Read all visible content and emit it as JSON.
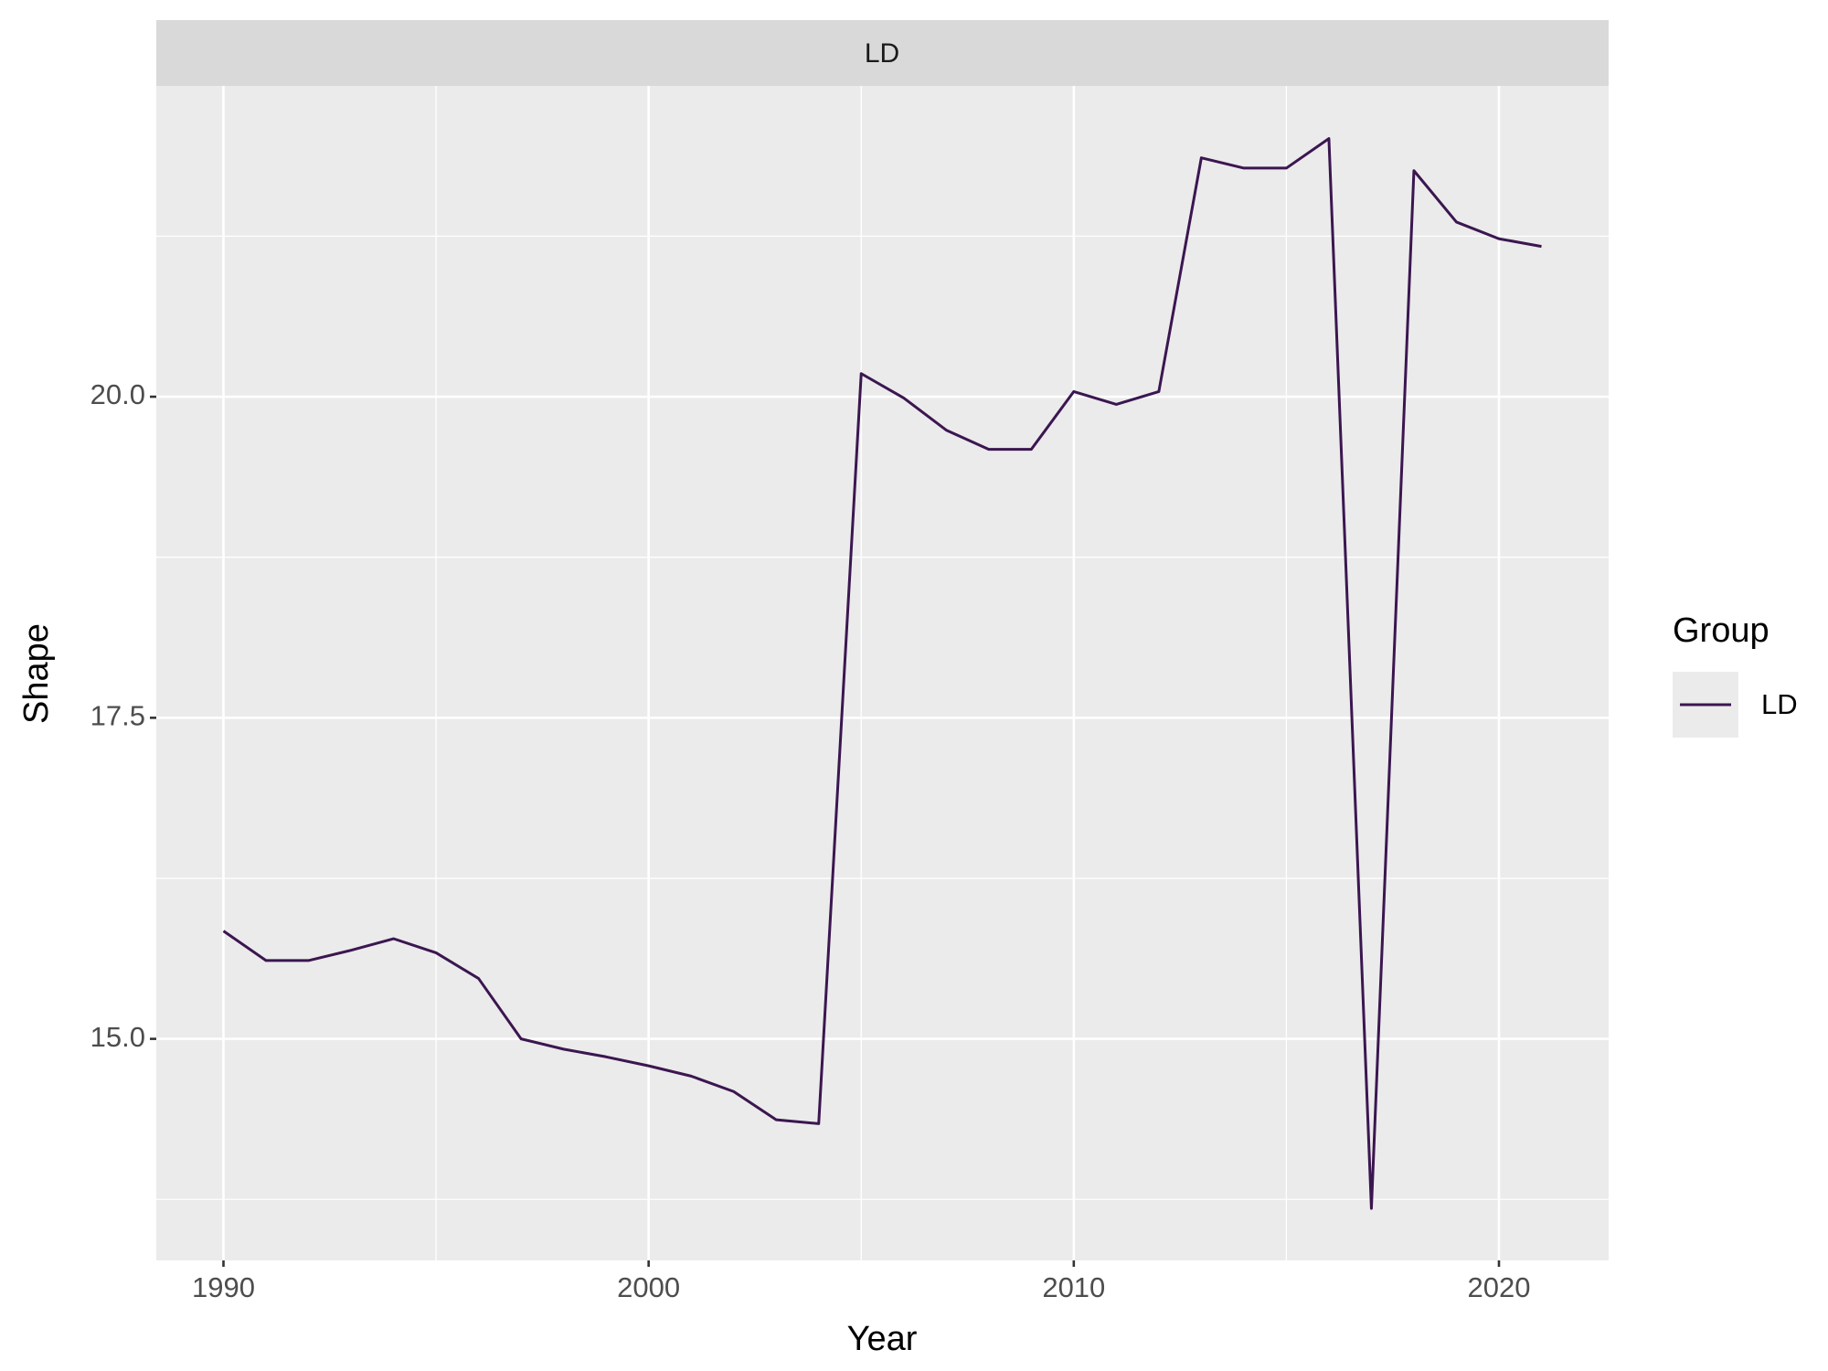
{
  "chart_data": {
    "type": "line",
    "panel_label": "LD",
    "xlabel": "Year",
    "ylabel": "Shape",
    "legend_title": "Group",
    "x": [
      1990,
      1991,
      1992,
      1993,
      1994,
      1995,
      1996,
      1997,
      1998,
      1999,
      2000,
      2001,
      2002,
      2003,
      2004,
      2005,
      2006,
      2007,
      2008,
      2009,
      2010,
      2011,
      2012,
      2013,
      2014,
      2015,
      2016,
      2017,
      2018,
      2019,
      2020,
      2021
    ],
    "series": [
      {
        "name": "LD",
        "color": "#3b1650",
        "values": [
          15.84,
          15.61,
          15.61,
          15.69,
          15.78,
          15.67,
          15.47,
          15.0,
          14.92,
          14.86,
          14.79,
          14.71,
          14.59,
          14.37,
          14.34,
          20.18,
          19.99,
          19.74,
          19.59,
          19.59,
          20.04,
          19.94,
          20.04,
          21.86,
          21.78,
          21.78,
          22.01,
          13.68,
          21.76,
          21.36,
          21.23,
          21.17
        ]
      }
    ],
    "xlim": [
      1988.42,
      2022.58
    ],
    "ylim": [
      13.275,
      22.42
    ],
    "xticks": [
      1990,
      2000,
      2010,
      2020
    ],
    "yticks": [
      {
        "value": 15,
        "label": "15.0"
      },
      17.5,
      {
        "value": 20,
        "label": "20.0"
      }
    ],
    "grid": true
  }
}
